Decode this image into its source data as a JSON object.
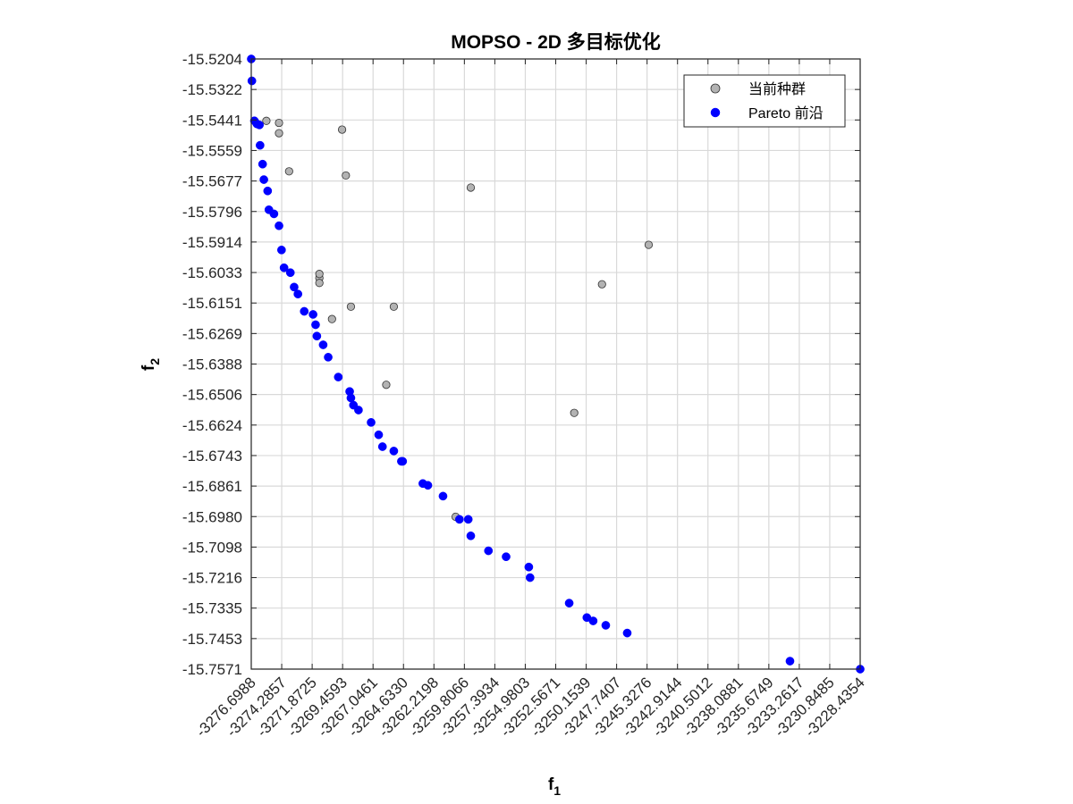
{
  "chart_data": {
    "type": "scatter",
    "title": "MOPSO - 2D 多目标优化",
    "xlabel": "f",
    "xlabel_sub": "1",
    "ylabel": "f",
    "ylabel_sub": "2",
    "xlim": [
      -3276.6988,
      -3228.4354
    ],
    "ylim": [
      -15.7571,
      -15.5204
    ],
    "y_reversed": true,
    "grid": true,
    "legend_position": "top-right",
    "x_ticks": [
      "-3276.6988",
      "-3274.2857",
      "-3271.8725",
      "-3269.4593",
      "-3267.0461",
      "-3264.6330",
      "-3262.2198",
      "-3259.8066",
      "-3257.3934",
      "-3254.9803",
      "-3252.5671",
      "-3250.1539",
      "-3247.7407",
      "-3245.3276",
      "-3242.9144",
      "-3240.5012",
      "-3238.0881",
      "-3235.6749",
      "-3233.2617",
      "-3230.8485",
      "-3228.4354"
    ],
    "y_ticks": [
      "-15.5204",
      "-15.5322",
      "-15.5441",
      "-15.5559",
      "-15.5677",
      "-15.5796",
      "-15.5914",
      "-15.6033",
      "-15.6151",
      "-15.6269",
      "-15.6388",
      "-15.6506",
      "-15.6624",
      "-15.6743",
      "-15.6861",
      "-15.6980",
      "-15.7098",
      "-15.7216",
      "-15.7335",
      "-15.7453",
      "-15.7571"
    ],
    "series": [
      {
        "name": "当前种群",
        "color": "#b3b3b3",
        "edge_color": "#333333",
        "points": [
          [
            -3275.5,
            -15.5444
          ],
          [
            -3274.5,
            -15.5452
          ],
          [
            -3274.5,
            -15.5492
          ],
          [
            -3273.7,
            -15.564
          ],
          [
            -3269.5,
            -15.5478
          ],
          [
            -3269.2,
            -15.5656
          ],
          [
            -3259.3,
            -15.5703
          ],
          [
            -3251.1,
            -15.6577
          ],
          [
            -3248.9,
            -15.6078
          ],
          [
            -3245.2,
            -15.5925
          ],
          [
            -3271.3,
            -15.6054
          ],
          [
            -3271.3,
            -15.6038
          ],
          [
            -3271.3,
            -15.6073
          ],
          [
            -3268.8,
            -15.6165
          ],
          [
            -3265.4,
            -15.6165
          ],
          [
            -3270.3,
            -15.6213
          ],
          [
            -3266.0,
            -15.6468
          ],
          [
            -3260.5,
            -15.698
          ]
        ]
      },
      {
        "name": "Pareto 前沿",
        "color": "#0000ff",
        "edge_color": "#0000ff",
        "points": [
          [
            -3276.6988,
            -15.5204
          ],
          [
            -3276.65,
            -15.5289
          ],
          [
            -3276.45,
            -15.5444
          ],
          [
            -3276.25,
            -15.5456
          ],
          [
            -3276.05,
            -15.546
          ],
          [
            -3276.0,
            -15.5539
          ],
          [
            -3275.8,
            -15.5612
          ],
          [
            -3275.7,
            -15.5672
          ],
          [
            -3275.4,
            -15.5716
          ],
          [
            -3275.3,
            -15.5789
          ],
          [
            -3274.9,
            -15.5805
          ],
          [
            -3274.5,
            -15.5851
          ],
          [
            -3274.3,
            -15.5945
          ],
          [
            -3274.1,
            -15.6014
          ],
          [
            -3273.6,
            -15.6033
          ],
          [
            -3273.3,
            -15.6089
          ],
          [
            -3273.0,
            -15.6116
          ],
          [
            -3272.5,
            -15.6183
          ],
          [
            -3271.8,
            -15.6195
          ],
          [
            -3271.6,
            -15.6235
          ],
          [
            -3271.5,
            -15.6279
          ],
          [
            -3271.0,
            -15.6313
          ],
          [
            -3270.6,
            -15.6361
          ],
          [
            -3269.8,
            -15.6438
          ],
          [
            -3268.9,
            -15.6494
          ],
          [
            -3268.8,
            -15.6519
          ],
          [
            -3268.6,
            -15.6547
          ],
          [
            -3268.2,
            -15.6566
          ],
          [
            -3267.2,
            -15.6614
          ],
          [
            -3266.6,
            -15.6662
          ],
          [
            -3266.3,
            -15.6708
          ],
          [
            -3265.4,
            -15.6725
          ],
          [
            -3264.8,
            -15.6765
          ],
          [
            -3264.7,
            -15.6765
          ],
          [
            -3263.1,
            -15.6851
          ],
          [
            -3262.7,
            -15.6858
          ],
          [
            -3261.5,
            -15.69
          ],
          [
            -3260.2,
            -15.699
          ],
          [
            -3259.5,
            -15.699
          ],
          [
            -3259.3,
            -15.7054
          ],
          [
            -3257.9,
            -15.7112
          ],
          [
            -3256.5,
            -15.7135
          ],
          [
            -3254.7,
            -15.7175
          ],
          [
            -3254.6,
            -15.7216
          ],
          [
            -3251.5,
            -15.7315
          ],
          [
            -3250.1,
            -15.7371
          ],
          [
            -3249.6,
            -15.7384
          ],
          [
            -3248.6,
            -15.7401
          ],
          [
            -3246.9,
            -15.7431
          ],
          [
            -3234.0,
            -15.754
          ],
          [
            -3228.4354,
            -15.7571
          ]
        ]
      }
    ]
  }
}
